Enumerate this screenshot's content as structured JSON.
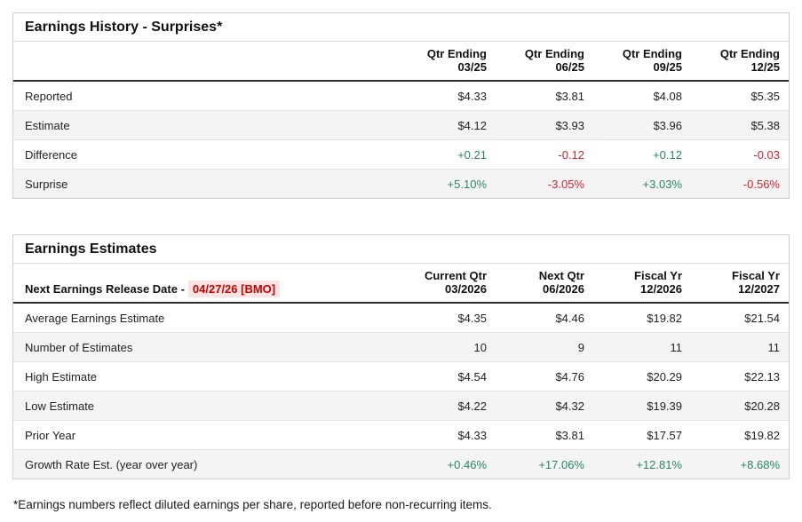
{
  "colors": {
    "positive": "#2a8565",
    "negative": "#cc2431",
    "release_date_text": "#c40000",
    "release_date_background": "#fce4e4"
  },
  "earnings_history": {
    "title": "Earnings History - Surprises*",
    "columns": [
      {
        "line1": "Qtr Ending",
        "line2": "03/25"
      },
      {
        "line1": "Qtr Ending",
        "line2": "06/25"
      },
      {
        "line1": "Qtr Ending",
        "line2": "09/25"
      },
      {
        "line1": "Qtr Ending",
        "line2": "12/25"
      }
    ],
    "rows": [
      {
        "label": "Reported",
        "values": [
          "$4.33",
          "$3.81",
          "$4.08",
          "$5.35"
        ]
      },
      {
        "label": "Estimate",
        "values": [
          "$4.12",
          "$3.93",
          "$3.96",
          "$5.38"
        ]
      },
      {
        "label": "Difference",
        "values": [
          "+0.21",
          "-0.12",
          "+0.12",
          "-0.03"
        ]
      },
      {
        "label": "Surprise",
        "values": [
          "+5.10%",
          "-3.05%",
          "+3.03%",
          "-0.56%"
        ]
      }
    ]
  },
  "earnings_estimates": {
    "title": "Earnings Estimates",
    "release_label": "Next Earnings Release Date -",
    "release_date": "04/27/26 [BMO]",
    "columns": [
      {
        "line1": "Current Qtr",
        "line2": "03/2026"
      },
      {
        "line1": "Next Qtr",
        "line2": "06/2026"
      },
      {
        "line1": "Fiscal Yr",
        "line2": "12/2026"
      },
      {
        "line1": "Fiscal Yr",
        "line2": "12/2027"
      }
    ],
    "rows": [
      {
        "label": "Average Earnings Estimate",
        "values": [
          "$4.35",
          "$4.46",
          "$19.82",
          "$21.54"
        ]
      },
      {
        "label": "Number of Estimates",
        "values": [
          "10",
          "9",
          "11",
          "11"
        ]
      },
      {
        "label": "High Estimate",
        "values": [
          "$4.54",
          "$4.76",
          "$20.29",
          "$22.13"
        ]
      },
      {
        "label": "Low Estimate",
        "values": [
          "$4.22",
          "$4.32",
          "$19.39",
          "$20.28"
        ]
      },
      {
        "label": "Prior Year",
        "values": [
          "$4.33",
          "$3.81",
          "$17.57",
          "$19.82"
        ]
      },
      {
        "label": "Growth Rate Est. (year over year)",
        "values": [
          "+0.46%",
          "+17.06%",
          "+12.81%",
          "+8.68%"
        ]
      }
    ]
  },
  "footnote": "*Earnings numbers reflect diluted earnings per share, reported before non-recurring items."
}
